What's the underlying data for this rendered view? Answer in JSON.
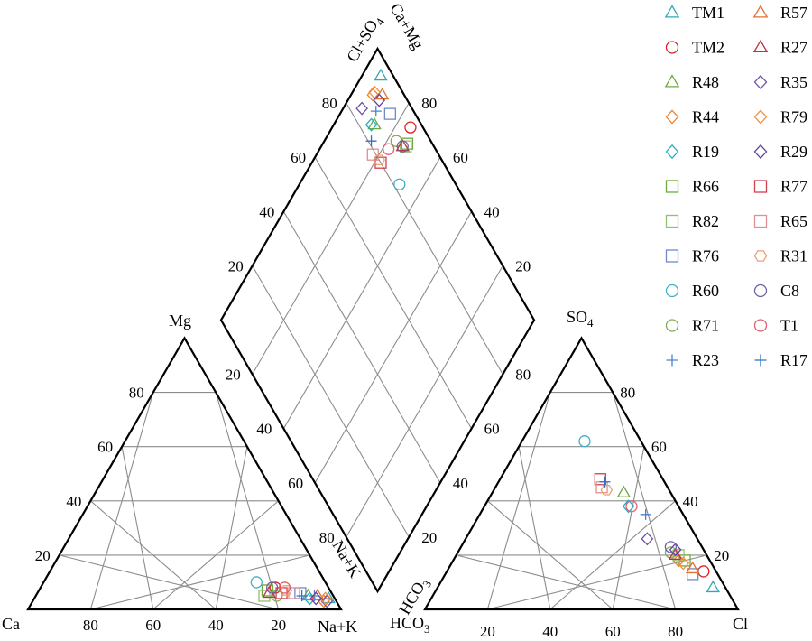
{
  "chart_data": {
    "type": "scatter",
    "subtype": "piper-trilinear",
    "units": "percent of total meq/L",
    "axes": {
      "cation": {
        "vertex_left": "Ca",
        "vertex_right": "Na+K",
        "vertex_top": "Mg",
        "ticks": [
          "80",
          "60",
          "40",
          "20"
        ]
      },
      "anion": {
        "vertex_left": "HCO",
        "vertex_left_sub": "3",
        "vertex_right": "Cl",
        "vertex_top": "SO",
        "vertex_top_sub": "4",
        "edge_left": "HCO",
        "edge_left_sub": "3",
        "ticks": [
          "20",
          "40",
          "60",
          "80"
        ]
      },
      "diamond": {
        "top_left": "Cl+SO",
        "top_left_sub": "4",
        "top_right": "Ca+Mg",
        "edge_left": "Na+K",
        "ticks": [
          "80",
          "60",
          "40",
          "20"
        ]
      }
    },
    "series": [
      {
        "name": "TM1",
        "marker": "triangle",
        "color": "#2fa8b8",
        "ca": 2,
        "mg": 4,
        "nak": 94,
        "hco3": 4,
        "so4": 8,
        "cl": 88
      },
      {
        "name": "TM2",
        "marker": "circle",
        "color": "#e02020",
        "ca": 17,
        "mg": 8,
        "nak": 75,
        "hco3": 4,
        "so4": 14,
        "cl": 82
      },
      {
        "name": "R48",
        "marker": "triangle",
        "color": "#70a840",
        "ca": 8,
        "mg": 5,
        "nak": 87,
        "hco3": 15,
        "so4": 43,
        "cl": 42
      },
      {
        "name": "R44",
        "marker": "diamond",
        "color": "#f08030",
        "ca": 4,
        "mg": 3,
        "nak": 93,
        "hco3": 10,
        "so4": 18,
        "cl": 72
      },
      {
        "name": "R19",
        "marker": "diamond",
        "color": "#20b0c0",
        "ca": 8,
        "mg": 4,
        "nak": 88,
        "hco3": 16,
        "so4": 38,
        "cl": 46
      },
      {
        "name": "R66",
        "marker": "square",
        "color": "#70a840",
        "ca": 20,
        "mg": 7,
        "nak": 73,
        "hco3": 8,
        "so4": 18,
        "cl": 74
      },
      {
        "name": "R82",
        "marker": "square",
        "color": "#90c070",
        "ca": 22,
        "mg": 5,
        "nak": 73,
        "hco3": 9,
        "so4": 20,
        "cl": 71
      },
      {
        "name": "R76",
        "marker": "square",
        "color": "#7088d0",
        "ca": 10,
        "mg": 6,
        "nak": 84,
        "hco3": 8,
        "so4": 13,
        "cl": 79
      },
      {
        "name": "R60",
        "marker": "circle",
        "color": "#40b0c0",
        "ca": 22,
        "mg": 10,
        "nak": 68,
        "hco3": 18,
        "so4": 62,
        "cl": 20
      },
      {
        "name": "R71",
        "marker": "circle",
        "color": "#80b050",
        "ca": 18,
        "mg": 5,
        "nak": 77,
        "hco3": 11,
        "so4": 21,
        "cl": 68
      },
      {
        "name": "R23",
        "marker": "plus",
        "color": "#4a80d0",
        "ca": 6,
        "mg": 5,
        "nak": 89,
        "hco3": 12,
        "so4": 35,
        "cl": 53
      },
      {
        "name": "R57",
        "marker": "triangle",
        "color": "#e07030",
        "ca": 5,
        "mg": 5,
        "nak": 90,
        "hco3": 7,
        "so4": 15,
        "cl": 78
      },
      {
        "name": "R27",
        "marker": "triangle",
        "color": "#c03040",
        "ca": 20,
        "mg": 6,
        "nak": 74,
        "hco3": 10,
        "so4": 20,
        "cl": 70
      },
      {
        "name": "R35",
        "marker": "diamond",
        "color": "#7050a0",
        "ca": 3,
        "mg": 3,
        "nak": 94,
        "hco3": 16,
        "so4": 26,
        "cl": 58
      },
      {
        "name": "R79",
        "marker": "diamond",
        "color": "#f09040",
        "ca": 3,
        "mg": 4,
        "nak": 93,
        "hco3": 9,
        "so4": 17,
        "cl": 74
      },
      {
        "name": "R29",
        "marker": "diamond",
        "color": "#6040a0",
        "ca": 6,
        "mg": 4,
        "nak": 90,
        "hco3": 9,
        "so4": 22,
        "cl": 69
      },
      {
        "name": "R77",
        "marker": "square",
        "color": "#d04050",
        "ca": 16,
        "mg": 6,
        "nak": 78,
        "hco3": 20,
        "so4": 48,
        "cl": 32
      },
      {
        "name": "R65",
        "marker": "square",
        "color": "#e09090",
        "ca": 12,
        "mg": 6,
        "nak": 82,
        "hco3": 21,
        "so4": 45,
        "cl": 34
      },
      {
        "name": "R31",
        "marker": "hexagon",
        "color": "#f0a070",
        "ca": 14,
        "mg": 7,
        "nak": 79,
        "hco3": 20,
        "so4": 44,
        "cl": 36
      },
      {
        "name": "C8",
        "marker": "circle",
        "color": "#7060a0",
        "ca": 18,
        "mg": 8,
        "nak": 74,
        "hco3": 10,
        "so4": 23,
        "cl": 67
      },
      {
        "name": "T1",
        "marker": "circle",
        "color": "#e06070",
        "ca": 14,
        "mg": 8,
        "nak": 78,
        "hco3": 15,
        "so4": 38,
        "cl": 47
      },
      {
        "name": "R17",
        "marker": "plus",
        "color": "#3070c0",
        "ca": 10,
        "mg": 5,
        "nak": 85,
        "hco3": 19,
        "so4": 47,
        "cl": 34
      }
    ]
  }
}
